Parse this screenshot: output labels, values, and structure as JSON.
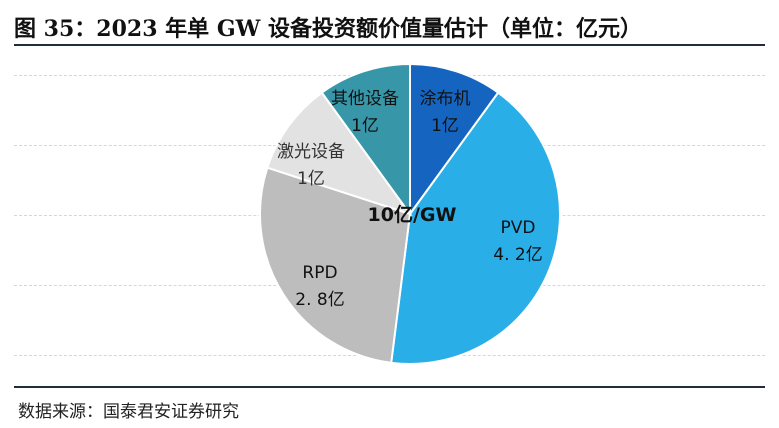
{
  "title": "图 35：2023 年单 GW 设备投资额价值量估计（单位：亿元）",
  "source": "数据来源：国泰君安证券研究",
  "center_label": "10亿/GW",
  "chart_data": {
    "type": "pie",
    "title": "图 35：2023 年单 GW 设备投资额价值量估计（单位：亿元）",
    "unit": "亿元",
    "slices": [
      {
        "name": "涂布机",
        "value": 1,
        "value_label": "1亿",
        "color": "#1565c0"
      },
      {
        "name": "PVD",
        "value": 4.2,
        "value_label": "4. 2亿",
        "color": "#29aee8"
      },
      {
        "name": "RPD",
        "value": 2.8,
        "value_label": "2. 8亿",
        "color": "#bdbdbd"
      },
      {
        "name": "激光设备",
        "value": 1,
        "value_label": "1亿",
        "color": "#e2e2e2"
      },
      {
        "name": "其他设备",
        "value": 1,
        "value_label": "1亿",
        "color": "#3797a8"
      }
    ],
    "total_label": "10亿/GW"
  }
}
